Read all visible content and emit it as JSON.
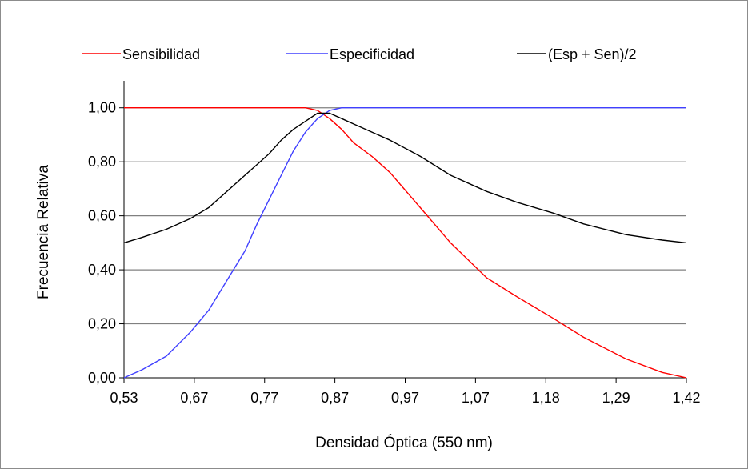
{
  "chart_data": {
    "type": "line",
    "title": "",
    "xlabel": "Densidad Óptica (550 nm)",
    "ylabel": "Frecuencia Relativa",
    "ylim": [
      0,
      1.1
    ],
    "yticks": [
      "0,00",
      "0,20",
      "0,40",
      "0,60",
      "0,80",
      "1,00"
    ],
    "xtick_labels": [
      "0,53",
      "0,67",
      "0,77",
      "0,87",
      "0,97",
      "1,07",
      "1,18",
      "1,29",
      "1,42"
    ],
    "x": [
      0.53,
      0.56,
      0.6,
      0.64,
      0.67,
      0.7,
      0.73,
      0.75,
      0.77,
      0.79,
      0.81,
      0.83,
      0.85,
      0.87,
      0.89,
      0.91,
      0.94,
      0.97,
      1.02,
      1.07,
      1.13,
      1.18,
      1.24,
      1.29,
      1.36,
      1.42,
      1.46
    ],
    "grid": true,
    "legend_position": "top",
    "series": [
      {
        "name": "Sensibilidad",
        "color": "#ff0000",
        "values": [
          1.0,
          1.0,
          1.0,
          1.0,
          1.0,
          1.0,
          1.0,
          1.0,
          1.0,
          1.0,
          1.0,
          1.0,
          0.99,
          0.96,
          0.92,
          0.87,
          0.82,
          0.76,
          0.63,
          0.5,
          0.37,
          0.3,
          0.22,
          0.15,
          0.07,
          0.02,
          0.0
        ]
      },
      {
        "name": "Especificidad",
        "color": "#4040ff",
        "values": [
          0.0,
          0.03,
          0.08,
          0.17,
          0.25,
          0.36,
          0.47,
          0.57,
          0.66,
          0.75,
          0.84,
          0.91,
          0.96,
          0.99,
          1.0,
          1.0,
          1.0,
          1.0,
          1.0,
          1.0,
          1.0,
          1.0,
          1.0,
          1.0,
          1.0,
          1.0,
          1.0
        ]
      },
      {
        "name": "(Esp + Sen)/2",
        "color": "#000000",
        "values": [
          0.5,
          0.52,
          0.55,
          0.59,
          0.63,
          0.69,
          0.75,
          0.79,
          0.83,
          0.88,
          0.92,
          0.95,
          0.98,
          0.98,
          0.96,
          0.94,
          0.91,
          0.88,
          0.82,
          0.75,
          0.69,
          0.65,
          0.61,
          0.57,
          0.53,
          0.51,
          0.5
        ]
      }
    ]
  }
}
